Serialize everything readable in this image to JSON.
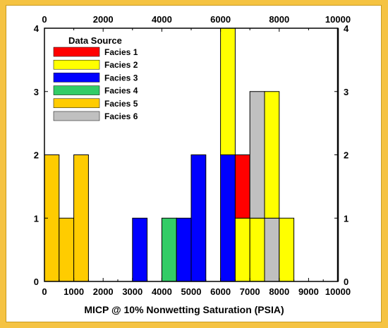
{
  "chart_data": {
    "type": "bar",
    "stacked": true,
    "xlabel": "MICP @ 10% Nonwetting Saturation (PSIA)",
    "ylabel": "",
    "xlim": [
      0,
      10000
    ],
    "ylim": [
      0,
      4
    ],
    "x_ticks_bottom": [
      "0",
      "1000",
      "2000",
      "3000",
      "4000",
      "5000",
      "6000",
      "7000",
      "8000",
      "9000",
      "10000"
    ],
    "x_ticks_top": [
      "0",
      "2000",
      "4000",
      "6000",
      "8000",
      "10000"
    ],
    "y_ticks": [
      "0",
      "1",
      "2",
      "3",
      "4"
    ],
    "bin_width": 500,
    "legend": {
      "title": "Data Source",
      "placement": "top-left"
    },
    "series": [
      {
        "name": "Facies 1",
        "color": "#ff0000",
        "bins": [
          {
            "x0": 6500,
            "count": 1
          }
        ]
      },
      {
        "name": "Facies 2",
        "color": "#ffff00",
        "bins": [
          {
            "x0": 6000,
            "count": 2
          },
          {
            "x0": 6500,
            "count": 1
          },
          {
            "x0": 7000,
            "count": 1
          },
          {
            "x0": 7500,
            "count": 2
          },
          {
            "x0": 8000,
            "count": 1
          }
        ]
      },
      {
        "name": "Facies 3",
        "color": "#0000ff",
        "bins": [
          {
            "x0": 3000,
            "count": 1
          },
          {
            "x0": 4500,
            "count": 1
          },
          {
            "x0": 5000,
            "count": 2
          },
          {
            "x0": 6000,
            "count": 2
          }
        ]
      },
      {
        "name": "Facies 4",
        "color": "#33cc66",
        "bins": [
          {
            "x0": 4000,
            "count": 1
          }
        ]
      },
      {
        "name": "Facies 5",
        "color": "#ffcc00",
        "bins": [
          {
            "x0": 0,
            "count": 2
          },
          {
            "x0": 500,
            "count": 1
          },
          {
            "x0": 1000,
            "count": 2
          }
        ]
      },
      {
        "name": "Facies 6",
        "color": "#c0c0c0",
        "bins": [
          {
            "x0": 7000,
            "count": 2
          },
          {
            "x0": 7500,
            "count": 1
          }
        ]
      }
    ]
  }
}
